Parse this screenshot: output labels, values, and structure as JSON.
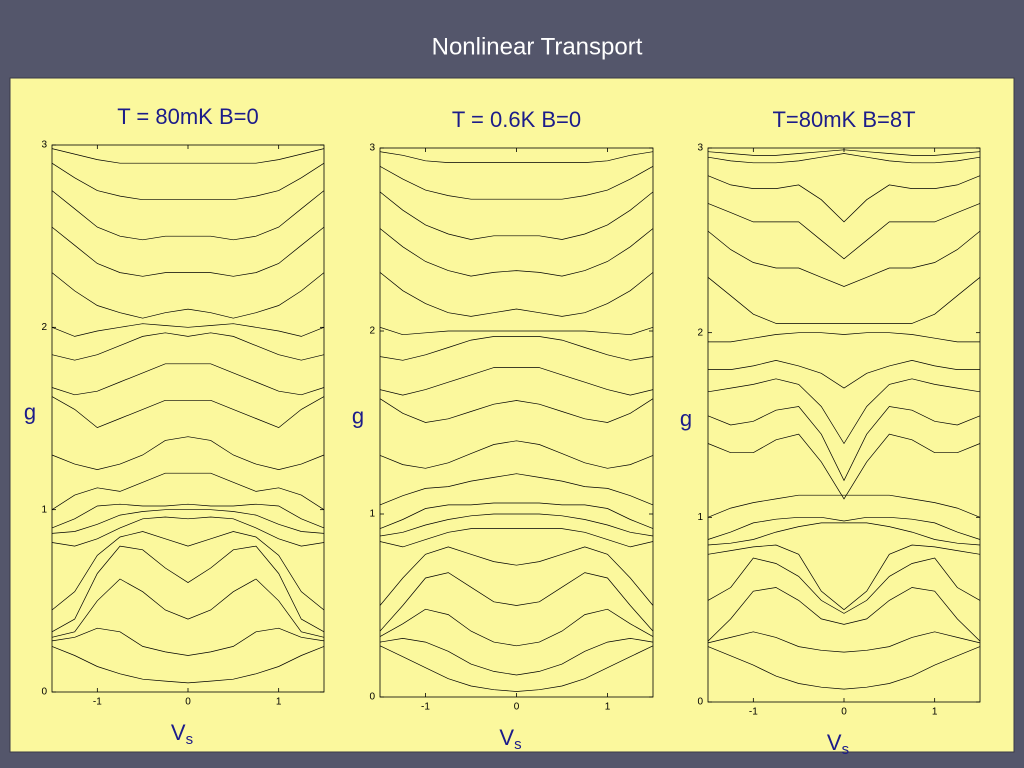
{
  "slide_title": "Nonlinear Transport",
  "chart_data": [
    {
      "type": "line",
      "title": "T = 80mK  B=0",
      "ylabel": "g",
      "xlabel": "V",
      "xlabel_subscript": "s",
      "xlim": [
        -1.5,
        1.5
      ],
      "ylim": [
        0,
        3
      ],
      "xticks": [
        -1,
        0,
        1
      ],
      "yticks": [
        0,
        1,
        2,
        3
      ],
      "x": [
        -1.5,
        -1.25,
        -1,
        -0.75,
        -0.5,
        -0.25,
        0,
        0.25,
        0.5,
        0.75,
        1,
        1.25,
        1.5
      ],
      "series": [
        {
          "color": "#000000",
          "values": [
            0.25,
            0.2,
            0.14,
            0.1,
            0.07,
            0.06,
            0.05,
            0.06,
            0.07,
            0.1,
            0.14,
            0.2,
            0.25
          ]
        },
        {
          "color": "#000000",
          "values": [
            0.28,
            0.3,
            0.35,
            0.33,
            0.25,
            0.22,
            0.2,
            0.22,
            0.25,
            0.33,
            0.35,
            0.3,
            0.28
          ]
        },
        {
          "color": "#000000",
          "values": [
            0.3,
            0.33,
            0.5,
            0.62,
            0.55,
            0.45,
            0.4,
            0.45,
            0.55,
            0.62,
            0.5,
            0.33,
            0.3
          ]
        },
        {
          "color": "#000000",
          "values": [
            0.33,
            0.4,
            0.65,
            0.8,
            0.78,
            0.68,
            0.6,
            0.68,
            0.78,
            0.8,
            0.65,
            0.4,
            0.33
          ]
        },
        {
          "color": "#000000",
          "values": [
            0.45,
            0.55,
            0.75,
            0.85,
            0.88,
            0.84,
            0.8,
            0.84,
            0.88,
            0.85,
            0.75,
            0.55,
            0.45
          ]
        },
        {
          "color": "#000000",
          "values": [
            0.82,
            0.8,
            0.84,
            0.9,
            0.95,
            0.96,
            0.95,
            0.96,
            0.95,
            0.9,
            0.84,
            0.8,
            0.82
          ]
        },
        {
          "color": "#000000",
          "values": [
            0.87,
            0.88,
            0.92,
            0.97,
            0.99,
            1,
            1,
            1,
            0.99,
            0.97,
            0.92,
            0.88,
            0.87
          ]
        },
        {
          "color": "#000000",
          "values": [
            0.9,
            0.95,
            1.02,
            1.03,
            1.02,
            1.02,
            1.03,
            1.02,
            1.02,
            1.03,
            1.02,
            0.95,
            0.9
          ]
        },
        {
          "color": "#000000",
          "values": [
            1,
            1.08,
            1.12,
            1.1,
            1.15,
            1.2,
            1.2,
            1.2,
            1.15,
            1.1,
            1.12,
            1.08,
            1
          ]
        },
        {
          "color": "#000000",
          "values": [
            1.3,
            1.25,
            1.22,
            1.25,
            1.3,
            1.38,
            1.4,
            1.38,
            1.3,
            1.25,
            1.22,
            1.25,
            1.3
          ]
        },
        {
          "color": "#000000",
          "values": [
            1.62,
            1.55,
            1.45,
            1.5,
            1.55,
            1.6,
            1.6,
            1.6,
            1.55,
            1.5,
            1.45,
            1.55,
            1.62
          ]
        },
        {
          "color": "#000000",
          "values": [
            1.67,
            1.63,
            1.65,
            1.7,
            1.75,
            1.8,
            1.8,
            1.8,
            1.75,
            1.7,
            1.65,
            1.63,
            1.67
          ]
        },
        {
          "color": "#000000",
          "values": [
            1.85,
            1.82,
            1.85,
            1.9,
            1.95,
            1.97,
            1.95,
            1.97,
            1.95,
            1.9,
            1.85,
            1.82,
            1.85
          ]
        },
        {
          "color": "#000000",
          "values": [
            2,
            1.95,
            1.98,
            2,
            2.02,
            2.01,
            2,
            2.01,
            2.02,
            2,
            1.98,
            1.95,
            2
          ]
        },
        {
          "color": "#000000",
          "values": [
            2.3,
            2.2,
            2.12,
            2.08,
            2.05,
            2.08,
            2.1,
            2.08,
            2.05,
            2.08,
            2.12,
            2.2,
            2.3
          ]
        },
        {
          "color": "#000000",
          "values": [
            2.55,
            2.45,
            2.35,
            2.3,
            2.28,
            2.3,
            2.3,
            2.3,
            2.28,
            2.3,
            2.35,
            2.45,
            2.55
          ]
        },
        {
          "color": "#000000",
          "values": [
            2.75,
            2.65,
            2.55,
            2.5,
            2.48,
            2.5,
            2.5,
            2.5,
            2.48,
            2.5,
            2.55,
            2.65,
            2.75
          ]
        },
        {
          "color": "#000000",
          "values": [
            2.9,
            2.82,
            2.75,
            2.72,
            2.7,
            2.7,
            2.7,
            2.7,
            2.7,
            2.72,
            2.75,
            2.82,
            2.9
          ]
        },
        {
          "color": "#000000",
          "values": [
            2.98,
            2.95,
            2.92,
            2.9,
            2.9,
            2.9,
            2.9,
            2.9,
            2.9,
            2.9,
            2.92,
            2.95,
            2.98
          ]
        }
      ]
    },
    {
      "type": "line",
      "title": "T = 0.6K  B=0",
      "ylabel": "g",
      "xlabel": "V",
      "xlabel_subscript": "s",
      "xlim": [
        -1.5,
        1.5
      ],
      "ylim": [
        0,
        3
      ],
      "xticks": [
        -1,
        0,
        1
      ],
      "yticks": [
        0,
        1,
        2,
        3
      ],
      "x": [
        -1.5,
        -1.25,
        -1,
        -0.75,
        -0.5,
        -0.25,
        0,
        0.25,
        0.5,
        0.75,
        1,
        1.25,
        1.5
      ],
      "series": [
        {
          "color": "#000000",
          "values": [
            0.28,
            0.22,
            0.16,
            0.1,
            0.06,
            0.04,
            0.03,
            0.04,
            0.06,
            0.1,
            0.16,
            0.22,
            0.28
          ]
        },
        {
          "color": "#000000",
          "values": [
            0.3,
            0.32,
            0.3,
            0.25,
            0.18,
            0.14,
            0.12,
            0.14,
            0.18,
            0.25,
            0.3,
            0.32,
            0.3
          ]
        },
        {
          "color": "#000000",
          "values": [
            0.33,
            0.4,
            0.48,
            0.45,
            0.36,
            0.3,
            0.28,
            0.3,
            0.36,
            0.45,
            0.48,
            0.4,
            0.33
          ]
        },
        {
          "color": "#000000",
          "values": [
            0.36,
            0.5,
            0.65,
            0.68,
            0.6,
            0.52,
            0.5,
            0.52,
            0.6,
            0.68,
            0.65,
            0.5,
            0.36
          ]
        },
        {
          "color": "#000000",
          "values": [
            0.5,
            0.65,
            0.78,
            0.82,
            0.78,
            0.74,
            0.72,
            0.74,
            0.78,
            0.82,
            0.78,
            0.65,
            0.5
          ]
        },
        {
          "color": "#000000",
          "values": [
            0.85,
            0.82,
            0.86,
            0.9,
            0.92,
            0.92,
            0.92,
            0.92,
            0.92,
            0.9,
            0.86,
            0.82,
            0.85
          ]
        },
        {
          "color": "#000000",
          "values": [
            0.88,
            0.9,
            0.94,
            0.97,
            0.99,
            1,
            1,
            1,
            0.99,
            0.97,
            0.94,
            0.9,
            0.88
          ]
        },
        {
          "color": "#000000",
          "values": [
            0.92,
            0.97,
            1.03,
            1.05,
            1.05,
            1.06,
            1.06,
            1.06,
            1.05,
            1.05,
            1.03,
            0.97,
            0.92
          ]
        },
        {
          "color": "#000000",
          "values": [
            1.05,
            1.1,
            1.14,
            1.15,
            1.18,
            1.2,
            1.22,
            1.2,
            1.18,
            1.15,
            1.14,
            1.1,
            1.05
          ]
        },
        {
          "color": "#000000",
          "values": [
            1.32,
            1.27,
            1.25,
            1.28,
            1.33,
            1.38,
            1.4,
            1.38,
            1.33,
            1.28,
            1.25,
            1.27,
            1.32
          ]
        },
        {
          "color": "#000000",
          "values": [
            1.63,
            1.55,
            1.5,
            1.52,
            1.56,
            1.6,
            1.62,
            1.6,
            1.56,
            1.52,
            1.5,
            1.55,
            1.63
          ]
        },
        {
          "color": "#000000",
          "values": [
            1.68,
            1.65,
            1.68,
            1.72,
            1.76,
            1.8,
            1.8,
            1.8,
            1.76,
            1.72,
            1.68,
            1.65,
            1.68
          ]
        },
        {
          "color": "#000000",
          "values": [
            1.86,
            1.84,
            1.87,
            1.91,
            1.95,
            1.97,
            1.97,
            1.97,
            1.95,
            1.91,
            1.87,
            1.84,
            1.86
          ]
        },
        {
          "color": "#000000",
          "values": [
            2.02,
            1.98,
            1.99,
            2,
            2,
            2,
            2,
            2,
            2,
            2,
            1.99,
            1.98,
            2.02
          ]
        },
        {
          "color": "#000000",
          "values": [
            2.32,
            2.22,
            2.15,
            2.1,
            2.08,
            2.1,
            2.12,
            2.1,
            2.08,
            2.1,
            2.15,
            2.22,
            2.32
          ]
        },
        {
          "color": "#000000",
          "values": [
            2.56,
            2.46,
            2.38,
            2.33,
            2.3,
            2.32,
            2.33,
            2.32,
            2.3,
            2.33,
            2.38,
            2.46,
            2.56
          ]
        },
        {
          "color": "#000000",
          "values": [
            2.76,
            2.66,
            2.58,
            2.53,
            2.5,
            2.52,
            2.52,
            2.52,
            2.5,
            2.53,
            2.58,
            2.66,
            2.76
          ]
        },
        {
          "color": "#000000",
          "values": [
            2.9,
            2.83,
            2.77,
            2.74,
            2.72,
            2.72,
            2.72,
            2.72,
            2.72,
            2.74,
            2.77,
            2.83,
            2.9
          ]
        },
        {
          "color": "#000000",
          "values": [
            2.98,
            2.96,
            2.93,
            2.92,
            2.92,
            2.92,
            2.92,
            2.92,
            2.92,
            2.92,
            2.93,
            2.96,
            2.98
          ]
        }
      ]
    },
    {
      "type": "line",
      "title": "T=80mK B=8T",
      "ylabel": "g",
      "xlabel": "V",
      "xlabel_subscript": "s",
      "xlim": [
        -1.5,
        1.5
      ],
      "ylim": [
        0,
        3
      ],
      "xticks": [
        -1,
        0,
        1
      ],
      "yticks": [
        0,
        1,
        2,
        3
      ],
      "x": [
        -1.5,
        -1.25,
        -1,
        -0.75,
        -0.5,
        -0.25,
        0,
        0.25,
        0.5,
        0.75,
        1,
        1.25,
        1.5
      ],
      "series": [
        {
          "color": "#000000",
          "values": [
            0.3,
            0.25,
            0.2,
            0.14,
            0.1,
            0.08,
            0.07,
            0.08,
            0.1,
            0.14,
            0.2,
            0.25,
            0.3
          ]
        },
        {
          "color": "#000000",
          "values": [
            0.32,
            0.35,
            0.38,
            0.35,
            0.3,
            0.28,
            0.27,
            0.28,
            0.3,
            0.35,
            0.38,
            0.35,
            0.32
          ]
        },
        {
          "color": "#000000",
          "values": [
            0.33,
            0.45,
            0.6,
            0.62,
            0.55,
            0.45,
            0.42,
            0.45,
            0.55,
            0.62,
            0.6,
            0.45,
            0.33
          ]
        },
        {
          "color": "#000000",
          "values": [
            0.55,
            0.62,
            0.78,
            0.75,
            0.68,
            0.55,
            0.48,
            0.55,
            0.68,
            0.75,
            0.78,
            0.62,
            0.55
          ]
        },
        {
          "color": "#000000",
          "values": [
            0.8,
            0.82,
            0.84,
            0.85,
            0.8,
            0.6,
            0.5,
            0.6,
            0.8,
            0.85,
            0.84,
            0.82,
            0.8
          ]
        },
        {
          "color": "#000000",
          "values": [
            0.85,
            0.86,
            0.88,
            0.92,
            0.95,
            0.97,
            0.97,
            0.97,
            0.95,
            0.92,
            0.88,
            0.86,
            0.85
          ]
        },
        {
          "color": "#000000",
          "values": [
            0.88,
            0.92,
            0.97,
            0.99,
            1,
            1,
            0.98,
            1,
            1,
            0.99,
            0.97,
            0.92,
            0.88
          ]
        },
        {
          "color": "#000000",
          "values": [
            1,
            1.05,
            1.08,
            1.1,
            1.12,
            1.12,
            1.12,
            1.12,
            1.12,
            1.1,
            1.08,
            1.05,
            1
          ]
        },
        {
          "color": "#000000",
          "values": [
            1.4,
            1.35,
            1.35,
            1.42,
            1.45,
            1.3,
            1.1,
            1.3,
            1.45,
            1.42,
            1.35,
            1.35,
            1.4
          ]
        },
        {
          "color": "#000000",
          "values": [
            1.55,
            1.5,
            1.52,
            1.58,
            1.6,
            1.45,
            1.2,
            1.45,
            1.6,
            1.58,
            1.52,
            1.5,
            1.55
          ]
        },
        {
          "color": "#000000",
          "values": [
            1.68,
            1.7,
            1.72,
            1.75,
            1.72,
            1.6,
            1.4,
            1.6,
            1.72,
            1.75,
            1.72,
            1.7,
            1.68
          ]
        },
        {
          "color": "#000000",
          "values": [
            1.8,
            1.8,
            1.82,
            1.85,
            1.82,
            1.78,
            1.7,
            1.78,
            1.82,
            1.85,
            1.82,
            1.8,
            1.8
          ]
        },
        {
          "color": "#000000",
          "values": [
            1.95,
            1.95,
            1.97,
            1.99,
            2,
            2,
            1.99,
            2,
            2,
            1.99,
            1.97,
            1.95,
            1.95
          ]
        },
        {
          "color": "#000000",
          "values": [
            2.3,
            2.2,
            2.1,
            2.05,
            2.05,
            2.05,
            2.05,
            2.05,
            2.05,
            2.05,
            2.1,
            2.2,
            2.3
          ]
        },
        {
          "color": "#000000",
          "values": [
            2.55,
            2.45,
            2.38,
            2.35,
            2.35,
            2.3,
            2.25,
            2.3,
            2.35,
            2.35,
            2.38,
            2.45,
            2.55
          ]
        },
        {
          "color": "#000000",
          "values": [
            2.7,
            2.65,
            2.6,
            2.6,
            2.6,
            2.5,
            2.4,
            2.5,
            2.6,
            2.6,
            2.6,
            2.65,
            2.7
          ]
        },
        {
          "color": "#000000",
          "values": [
            2.85,
            2.8,
            2.78,
            2.78,
            2.8,
            2.72,
            2.6,
            2.72,
            2.8,
            2.78,
            2.78,
            2.8,
            2.85
          ]
        },
        {
          "color": "#000000",
          "values": [
            2.95,
            2.93,
            2.92,
            2.92,
            2.93,
            2.95,
            2.97,
            2.95,
            2.93,
            2.92,
            2.92,
            2.93,
            2.95
          ]
        },
        {
          "color": "#000000",
          "values": [
            2.98,
            2.97,
            2.96,
            2.96,
            2.97,
            2.98,
            2.99,
            2.98,
            2.97,
            2.96,
            2.96,
            2.97,
            2.98
          ]
        }
      ]
    }
  ]
}
